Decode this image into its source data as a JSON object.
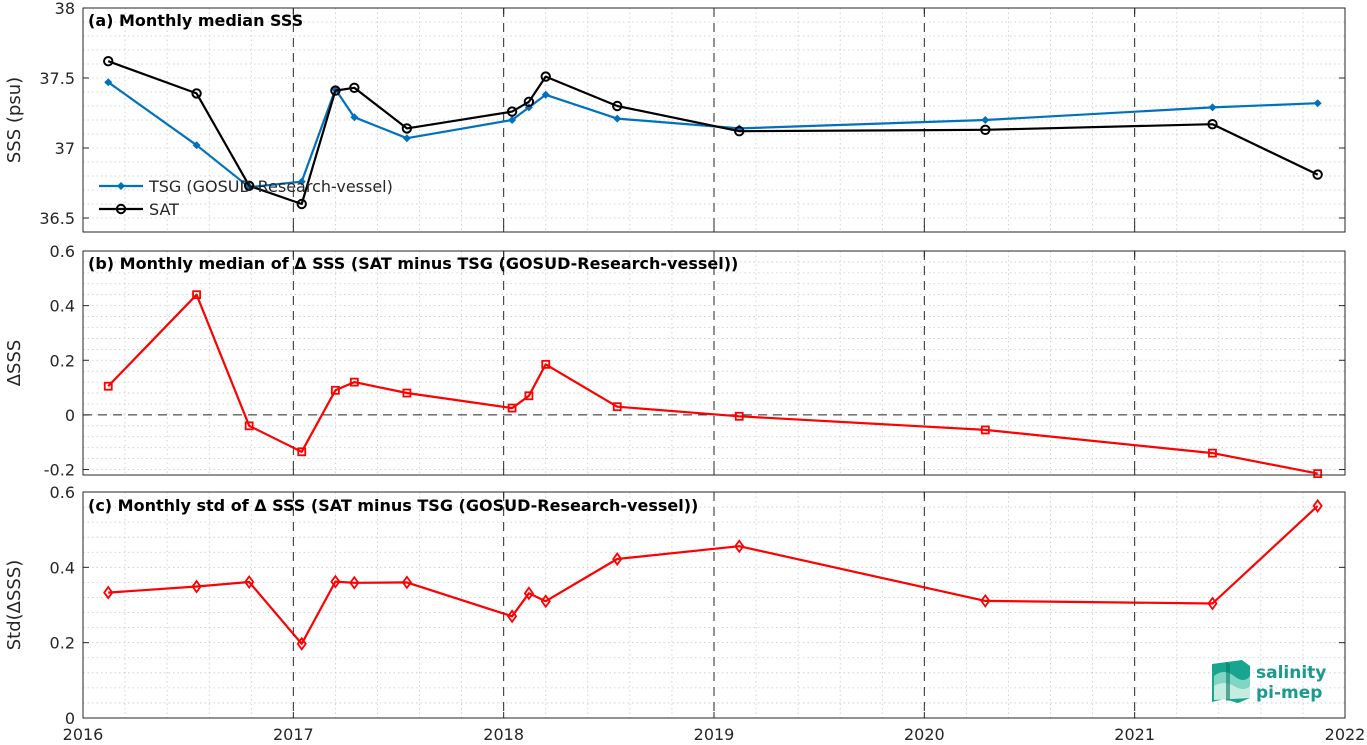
{
  "chart_data": [
    {
      "type": "line",
      "title": "(a) Monthly median SSS",
      "ylabel": "SSS (psu)",
      "xlim": [
        2016,
        2022
      ],
      "ylim": [
        36.4,
        38
      ],
      "yticks": [
        36.5,
        37,
        37.5,
        38
      ],
      "ytick_labels": [
        "36.5",
        "37",
        "37.5",
        "38"
      ],
      "grid": true,
      "legend_position": "lower-left",
      "series": [
        {
          "name": "TSG (GOSUD-Research-vessel)",
          "color": "#0072bd",
          "marker": "filled-diamond",
          "x": [
            2016.12,
            2016.54,
            2016.79,
            2017.04,
            2017.2,
            2017.29,
            2017.54,
            2018.04,
            2018.12,
            2018.2,
            2018.54,
            2019.12,
            2020.29,
            2021.37,
            2021.87
          ],
          "y": [
            37.47,
            37.02,
            36.72,
            36.76,
            37.42,
            37.22,
            37.07,
            37.2,
            37.29,
            37.38,
            37.21,
            37.14,
            37.2,
            37.29,
            37.32
          ]
        },
        {
          "name": "SAT",
          "color": "#000000",
          "marker": "open-circle",
          "x": [
            2016.12,
            2016.54,
            2016.79,
            2017.04,
            2017.2,
            2017.29,
            2017.54,
            2018.04,
            2018.12,
            2018.2,
            2018.54,
            2019.12,
            2020.29,
            2021.37,
            2021.87
          ],
          "y": [
            37.62,
            37.39,
            36.73,
            36.6,
            37.41,
            37.43,
            37.14,
            37.26,
            37.33,
            37.51,
            37.3,
            37.12,
            37.13,
            37.17,
            36.81
          ]
        }
      ]
    },
    {
      "type": "line",
      "title": "(b) Monthly median of Δ SSS (SAT minus TSG (GOSUD-Research-vessel))",
      "ylabel": "ΔSSS",
      "xlim": [
        2016,
        2022
      ],
      "ylim": [
        -0.22,
        0.6
      ],
      "yticks": [
        -0.2,
        0,
        0.2,
        0.4,
        0.6
      ],
      "ytick_labels": [
        "-0.2",
        "0",
        "0.2",
        "0.4",
        "0.6"
      ],
      "zero_line": true,
      "grid": true,
      "series": [
        {
          "color": "#ff0000",
          "marker": "open-square",
          "x": [
            2016.12,
            2016.54,
            2016.79,
            2017.04,
            2017.2,
            2017.29,
            2017.54,
            2018.04,
            2018.12,
            2018.2,
            2018.54,
            2019.12,
            2020.29,
            2021.37,
            2021.87
          ],
          "y": [
            0.105,
            0.44,
            -0.04,
            -0.135,
            0.09,
            0.12,
            0.08,
            0.025,
            0.07,
            0.185,
            0.03,
            -0.005,
            -0.055,
            -0.14,
            -0.215
          ]
        }
      ]
    },
    {
      "type": "line",
      "title": "(c) Monthly std of Δ SSS (SAT minus TSG (GOSUD-Research-vessel))",
      "ylabel": "Std(ΔSSS)",
      "xlim": [
        2016,
        2022
      ],
      "ylim": [
        0,
        0.6
      ],
      "yticks": [
        0,
        0.2,
        0.4,
        0.6
      ],
      "ytick_labels": [
        "0",
        "0.2",
        "0.4",
        "0.6"
      ],
      "grid": true,
      "series": [
        {
          "color": "#ff0000",
          "marker": "open-diamond",
          "x": [
            2016.12,
            2016.54,
            2016.79,
            2017.04,
            2017.2,
            2017.29,
            2017.54,
            2018.04,
            2018.12,
            2018.2,
            2018.54,
            2019.12,
            2020.29,
            2021.37,
            2021.87
          ],
          "y": [
            0.333,
            0.349,
            0.361,
            0.197,
            0.362,
            0.359,
            0.36,
            0.27,
            0.331,
            0.31,
            0.422,
            0.456,
            0.311,
            0.304,
            0.563
          ]
        }
      ]
    }
  ],
  "xaxis": {
    "ticks": [
      2016,
      2017,
      2018,
      2019,
      2020,
      2021,
      2022
    ],
    "tick_labels": [
      "2016",
      "2017",
      "2018",
      "2019",
      "2020",
      "2021",
      "2022"
    ],
    "year_lines": "dashed"
  },
  "logo": {
    "line1": "salinity",
    "line2": "pi-mep"
  }
}
